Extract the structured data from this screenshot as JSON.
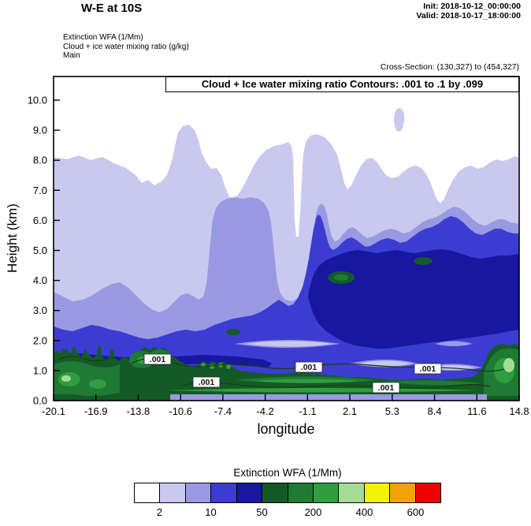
{
  "header": {
    "title": "W-E at 10S",
    "init": "Init: 2018-10-12_00:00:00",
    "valid": "Valid: 2018-10-17_18:00:00",
    "field1": "Extinction WFA (1/Mm)",
    "field2": "Cloud + ice water mixing ratio (g/kg)",
    "field3": "Main",
    "cross_section": "Cross-Section: (130,327) to (454,327)"
  },
  "plot": {
    "inner_title": "Cloud + Ice water mixing ratio Contours: .001 to .1 by .099",
    "ylabel": "Height (km)",
    "xlabel": "longitude",
    "y_ticks": [
      "10.0",
      "9.0",
      "8.0",
      "7.0",
      "6.0",
      "5.0",
      "4.0",
      "3.0",
      "2.0",
      "1.0",
      "0.0"
    ],
    "x_ticks": [
      "-20.1",
      "-16.9",
      "-13.8",
      "-10.6",
      "-7.4",
      "-4.2",
      "-1.1",
      "2.1",
      "5.3",
      "8.4",
      "11.6",
      "14.8"
    ],
    "contour_label": ".001",
    "contour_line_color": "#1c3b12",
    "frame_color": "#000000"
  },
  "colorbar": {
    "title": "Extinction WFA (1/Mm)",
    "colors": [
      "#ffffff",
      "#c9c9ef",
      "#9a9ae4",
      "#3c3cd2",
      "#1717a0",
      "#145a26",
      "#1f7a33",
      "#2e9e41",
      "#a4dc96",
      "#f2f201",
      "#f2a202",
      "#ee0000"
    ],
    "tick_labels": [
      "2",
      "10",
      "50",
      "200",
      "400",
      "600"
    ],
    "tick_positions": [
      1,
      3,
      5,
      7,
      9,
      11
    ]
  },
  "chart_data": {
    "type": "heatmap",
    "subtype": "vertical cross-section filled contour with line contours",
    "title": "Cloud + Ice water mixing ratio Contours: .001 to .1 by .099",
    "xlabel": "longitude",
    "ylabel": "Height (km)",
    "xlim": [
      -20.1,
      14.8
    ],
    "ylim": [
      0.0,
      10.8
    ],
    "x_ticks": [
      -20.1,
      -16.9,
      -13.8,
      -10.6,
      -7.4,
      -4.2,
      -1.1,
      2.1,
      5.3,
      8.4,
      11.6,
      14.8
    ],
    "y_ticks": [
      0,
      1,
      2,
      3,
      4,
      5,
      6,
      7,
      8,
      9,
      10
    ],
    "grid": false,
    "legend_position": "bottom colorbar",
    "fill_variable": "Extinction WFA (1/Mm)",
    "fill_labeled_levels": [
      2,
      10,
      50,
      200,
      400,
      600
    ],
    "fill_colors": [
      "#ffffff",
      "#c9c9ef",
      "#9a9ae4",
      "#3c3cd2",
      "#1717a0",
      "#145a26",
      "#1f7a33",
      "#2e9e41",
      "#a4dc96",
      "#f2f201",
      "#f2a202",
      "#ee0000"
    ],
    "contour_variable": "Cloud + Ice water mixing ratio (g/kg)",
    "contour_levels_spec": ".001 to .1 by .099",
    "contour_levels": [
      0.001,
      0.1
    ],
    "contour_label_locations": [
      {
        "lon": -12.3,
        "height_km": 1.4
      },
      {
        "lon": -8.6,
        "height_km": 0.6
      },
      {
        "lon": -1.0,
        "height_km": 1.1
      },
      {
        "lon": 4.8,
        "height_km": 0.4
      },
      {
        "lon": 7.9,
        "height_km": 1.05
      }
    ],
    "series": [
      {
        "name": "extinction_gt_2_top_height_km",
        "x": [
          -20.1,
          -16.9,
          -13.8,
          -10.6,
          -7.4,
          -4.2,
          -1.1,
          2.1,
          5.3,
          8.4,
          11.6,
          14.8
        ],
        "values": [
          8.1,
          8.0,
          7.4,
          9.0,
          7.2,
          8.3,
          8.7,
          7.1,
          7.4,
          6.9,
          7.7,
          8.1
        ]
      },
      {
        "name": "extinction_gt_10_top_height_km",
        "x": [
          -20.1,
          -16.9,
          -13.8,
          -10.6,
          -7.4,
          -4.2,
          -1.1,
          2.1,
          5.3,
          8.4,
          11.6,
          14.8
        ],
        "values": [
          3.6,
          3.6,
          3.4,
          3.5,
          6.7,
          6.5,
          4.3,
          5.7,
          5.7,
          6.1,
          5.9,
          5.9
        ]
      },
      {
        "name": "surface_aerosol_layer_top_height_km",
        "x": [
          -20.1,
          -16.9,
          -13.8,
          -10.6,
          -7.4,
          -4.2,
          -1.1,
          2.1,
          5.3,
          8.4,
          11.6,
          14.8
        ],
        "values": [
          1.6,
          1.5,
          1.8,
          1.3,
          1.2,
          0.9,
          0.9,
          0.8,
          0.7,
          0.7,
          0.8,
          1.9
        ]
      }
    ],
    "notes": "Filled extinction cross-section along 10S. Deep blue (higher extinction) core between ~2.3 and 5 km from lon ~-1 eastward to 14.8; pale lavender cloud/aerosol envelope up to ~8-9 km; shallow green high-extinction surface layer below ~1.5 km across the whole section; thin 0.001 g/kg cloud-ice contour loops near 0.4-1.4 km."
  }
}
